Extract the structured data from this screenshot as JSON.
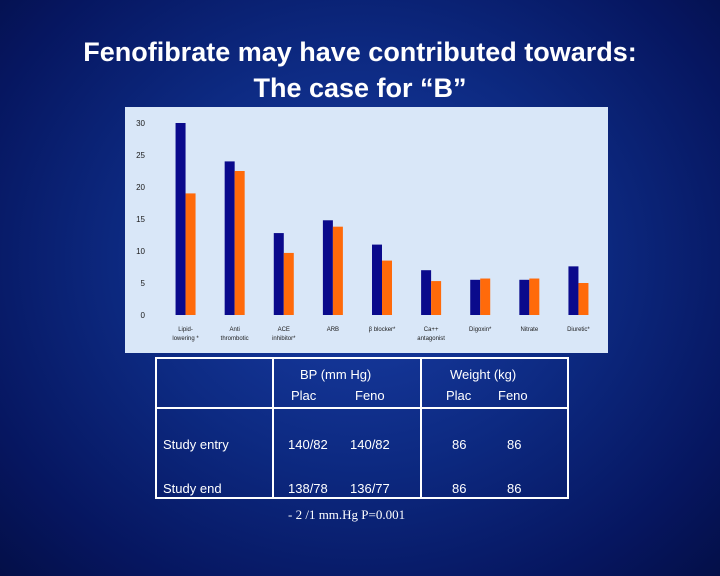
{
  "slide": {
    "title_line1": "Fenofibrate may have contributed towards:",
    "title_line2": "The case for “B”"
  },
  "chart_data": {
    "type": "bar",
    "categories": [
      [
        "Lipid-",
        "lowering *"
      ],
      [
        "Anti",
        "thrombotic"
      ],
      [
        "ACE",
        "inhibitor*"
      ],
      [
        "ARB"
      ],
      [
        "β blocker*"
      ],
      [
        "Ca++",
        "antagonist"
      ],
      [
        "Digoxin*"
      ],
      [
        "Nitrate"
      ],
      [
        "Diuretic*"
      ]
    ],
    "series": [
      {
        "values": [
          30,
          24,
          12.8,
          14.8,
          11,
          7,
          5.5,
          5.5,
          7.6
        ]
      },
      {
        "values": [
          19,
          22.5,
          9.7,
          13.8,
          8.5,
          5.3,
          5.7,
          5.7,
          5
        ]
      }
    ],
    "ylim": [
      0,
      30
    ],
    "yticks": [
      0,
      5,
      10,
      15,
      20,
      25,
      30
    ],
    "colors": [
      "#0a0a8c",
      "#ff6a0a"
    ],
    "grid": false,
    "background": "#d9e7f8"
  },
  "table": {
    "bp_header": "BP (mm Hg)",
    "weight_header": "Weight (kg)",
    "sub_headers": [
      "Plac",
      "Feno",
      "Plac",
      "Feno"
    ],
    "rows": [
      {
        "label": "Study entry",
        "bp_plac": "140/82",
        "bp_feno": "140/82",
        "wt_plac": "86",
        "wt_feno": "86"
      },
      {
        "label": "Study end",
        "bp_plac": "138/78",
        "bp_feno": "136/77",
        "wt_plac": "86",
        "wt_feno": "86"
      }
    ]
  },
  "footnote": "- 2 /1 mm.Hg P=0.001"
}
